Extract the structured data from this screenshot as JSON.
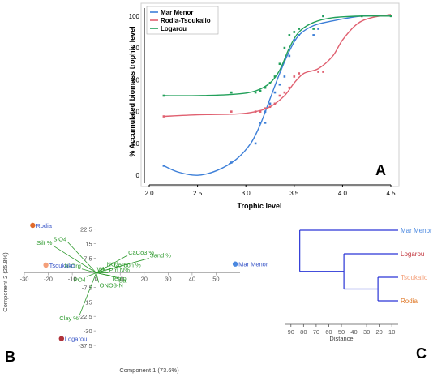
{
  "panels": {
    "a": "A",
    "b": "B",
    "c": "C"
  },
  "chart_data": [
    {
      "type": "scatter",
      "xlabel": "Trophic level",
      "ylabel": "% Accumulated biomass trophic level",
      "xlim": [
        2.0,
        4.5
      ],
      "ylim": [
        -5,
        105
      ],
      "xticks": [
        "2.0",
        "2.5",
        "3.0",
        "3.5",
        "4.0",
        "4.5"
      ],
      "yticks": [
        "0",
        "20",
        "40",
        "60",
        "80",
        "100"
      ],
      "legend_position": "top-left",
      "series": [
        {
          "name": "Mar Menor",
          "color": "#3d7fd8",
          "points": [
            [
              2.15,
              6
            ],
            [
              2.85,
              8
            ],
            [
              3.1,
              20
            ],
            [
              3.15,
              33
            ],
            [
              3.2,
              33
            ],
            [
              3.2,
              40
            ],
            [
              3.25,
              45
            ],
            [
              3.3,
              52
            ],
            [
              3.35,
              57
            ],
            [
              3.4,
              62
            ],
            [
              3.45,
              75
            ],
            [
              3.5,
              85
            ],
            [
              3.55,
              88
            ],
            [
              3.7,
              88
            ],
            [
              3.75,
              92
            ],
            [
              3.8,
              100
            ]
          ],
          "curve": [
            [
              2.15,
              6
            ],
            [
              2.3,
              2
            ],
            [
              2.5,
              0
            ],
            [
              2.7,
              3
            ],
            [
              2.9,
              10
            ],
            [
              3.05,
              20
            ],
            [
              3.15,
              32
            ],
            [
              3.25,
              48
            ],
            [
              3.35,
              64
            ],
            [
              3.45,
              78
            ],
            [
              3.55,
              88
            ],
            [
              3.7,
              94
            ],
            [
              3.9,
              97
            ],
            [
              4.2,
              100
            ],
            [
              4.5,
              100
            ]
          ]
        },
        {
          "name": "Rodia-Tsoukalio",
          "color": "#e06070",
          "points": [
            [
              2.15,
              37
            ],
            [
              2.85,
              40
            ],
            [
              3.1,
              40
            ],
            [
              3.15,
              40
            ],
            [
              3.2,
              42
            ],
            [
              3.25,
              43
            ],
            [
              3.3,
              45
            ],
            [
              3.35,
              50
            ],
            [
              3.4,
              52
            ],
            [
              3.45,
              55
            ],
            [
              3.5,
              62
            ],
            [
              3.55,
              64
            ],
            [
              3.75,
              65
            ],
            [
              3.8,
              65
            ],
            [
              4.2,
              100
            ]
          ],
          "curve": [
            [
              2.15,
              37
            ],
            [
              2.5,
              38
            ],
            [
              2.9,
              38.5
            ],
            [
              3.1,
              40
            ],
            [
              3.25,
              43
            ],
            [
              3.4,
              50
            ],
            [
              3.5,
              58
            ],
            [
              3.6,
              64
            ],
            [
              3.75,
              67
            ],
            [
              3.9,
              75
            ],
            [
              4.0,
              85
            ],
            [
              4.15,
              95
            ],
            [
              4.3,
              99
            ],
            [
              4.5,
              101
            ]
          ]
        },
        {
          "name": "Logarou",
          "color": "#22a05a",
          "points": [
            [
              2.15,
              50
            ],
            [
              2.85,
              52
            ],
            [
              3.1,
              52
            ],
            [
              3.15,
              53
            ],
            [
              3.2,
              55
            ],
            [
              3.25,
              58
            ],
            [
              3.3,
              62
            ],
            [
              3.35,
              70
            ],
            [
              3.4,
              80
            ],
            [
              3.45,
              88
            ],
            [
              3.5,
              90
            ],
            [
              3.55,
              92
            ],
            [
              3.7,
              92
            ],
            [
              3.8,
              100
            ],
            [
              4.2,
              100
            ],
            [
              4.5,
              100
            ]
          ],
          "curve": [
            [
              2.15,
              50
            ],
            [
              2.5,
              50
            ],
            [
              2.9,
              51
            ],
            [
              3.1,
              53
            ],
            [
              3.25,
              58
            ],
            [
              3.35,
              66
            ],
            [
              3.45,
              80
            ],
            [
              3.55,
              90
            ],
            [
              3.7,
              96
            ],
            [
              3.9,
              99
            ],
            [
              4.2,
              100
            ],
            [
              4.5,
              100
            ]
          ]
        }
      ]
    },
    {
      "type": "scatter",
      "xlabel": "Component 1 (73.6%)",
      "ylabel": "Component 2 (25.8%)",
      "xlim": [
        -30,
        60
      ],
      "ylim": [
        -40,
        27
      ],
      "xticks": [
        "-30",
        "-20",
        "-10",
        "0",
        "10",
        "20",
        "30",
        "40",
        "50"
      ],
      "yticks": [
        "22.5",
        "15",
        "7.5",
        "-7.5",
        "-15",
        "-22.5",
        "-30",
        "-37.5"
      ],
      "sites": [
        {
          "name": "Rodia",
          "x": -26.5,
          "y": 24.5,
          "color": "#e06a2a",
          "label_color": "#3a57c8"
        },
        {
          "name": "Tsoukalio",
          "x": -21,
          "y": 4,
          "color": "#f4a07a",
          "label_color": "#3a57c8"
        },
        {
          "name": "Logarou",
          "x": -14.5,
          "y": -34,
          "color": "#b0323a",
          "label_color": "#3a57c8"
        },
        {
          "name": "Mar Menor",
          "x": 58,
          "y": 4.5,
          "color": "#4a88e0",
          "label_color": "#3a57c8"
        }
      ],
      "vectors": [
        {
          "label": "Silt %",
          "x": -18,
          "y": 14
        },
        {
          "label": "SiO4",
          "x": -12,
          "y": 16
        },
        {
          "label": "CaCo3 %",
          "x": 13,
          "y": 9
        },
        {
          "label": "Sand %",
          "x": 22,
          "y": 7.5
        },
        {
          "label": "NO2-",
          "x": 4,
          "y": 3
        },
        {
          "label": "N-Org",
          "x": -6,
          "y": 2
        },
        {
          "label": "Corbon %",
          "x": 7,
          "y": 2.5
        },
        {
          "label": "Pm N%",
          "x": 5,
          "y": 0
        },
        {
          "label": "Wk",
          "x": 0,
          "y": 0.5
        },
        {
          "label": "Temp",
          "x": 6,
          "y": -1.5
        },
        {
          "label": "Sal",
          "x": 9,
          "y": -2.5
        },
        {
          "label": "PO4",
          "x": -4,
          "y": -2
        },
        {
          "label": "ONO3-N",
          "x": 1,
          "y": -5
        },
        {
          "label": "Clay %",
          "x": -7,
          "y": -22
        }
      ]
    },
    {
      "type": "dendrogram",
      "xlabel": "Distance",
      "xlim": [
        95,
        5
      ],
      "xticks": [
        "90",
        "80",
        "70",
        "60",
        "50",
        "40",
        "30",
        "20",
        "10"
      ],
      "leaves": [
        {
          "name": "Mar Menor",
          "color": "#4a88e0"
        },
        {
          "name": "Logarou",
          "color": "#c0323a"
        },
        {
          "name": "Tsoukalio",
          "color": "#f4a07a"
        },
        {
          "name": "Rodia",
          "color": "#e07a2a"
        }
      ],
      "merges": [
        {
          "a": 2,
          "b": 3,
          "height": 21
        },
        {
          "a": 1,
          "b": "m0",
          "height": 48
        },
        {
          "a": 0,
          "b": "m1",
          "height": 83
        }
      ]
    }
  ]
}
